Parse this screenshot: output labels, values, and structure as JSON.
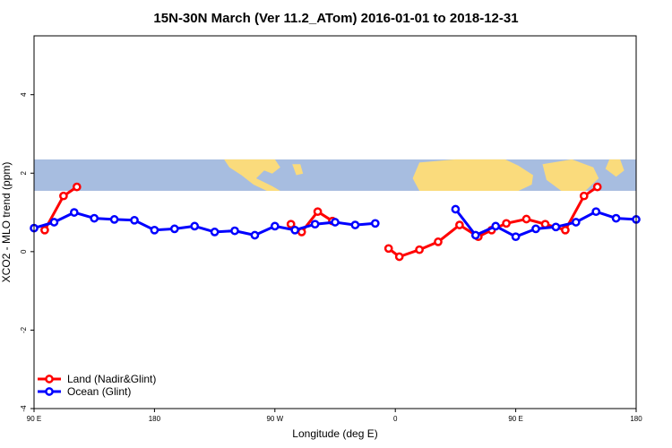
{
  "chart_data": {
    "type": "line",
    "title": "15N-30N March (Ver 11.2_ATom)   2016-01-01 to 2018-12-31",
    "xlabel": "Longitude (deg E)",
    "ylabel": "XCO2 - MLO trend (ppm)",
    "x_range_deg": [
      90,
      540
    ],
    "y_range": [
      -4,
      5.5
    ],
    "x_ticks": [
      {
        "value": 90,
        "label": "90 E"
      },
      {
        "value": 180,
        "label": "180"
      },
      {
        "value": 270,
        "label": "90 W"
      },
      {
        "value": 360,
        "label": "0"
      },
      {
        "value": 450,
        "label": "90 E"
      },
      {
        "value": 540,
        "label": "180"
      }
    ],
    "y_ticks": [
      {
        "value": -4,
        "label": "-4"
      },
      {
        "value": -2,
        "label": "-2"
      },
      {
        "value": 0,
        "label": "0"
      },
      {
        "value": 2,
        "label": "2"
      },
      {
        "value": 4,
        "label": "4"
      }
    ],
    "map_band": {
      "y_min": 1.55,
      "y_max": 2.35,
      "ocean_color": "#a7bde0",
      "land_color": "#fadb7c"
    },
    "legend_position": "bottom-left",
    "series": [
      {
        "name": "Land (Nadir&Glint)",
        "color": "#ff0000",
        "segments": [
          [
            [
              98,
              0.55
            ],
            [
              112,
              1.42
            ],
            [
              122,
              1.65
            ]
          ],
          [
            [
              282,
              0.7
            ],
            [
              290,
              0.5
            ],
            [
              302,
              1.02
            ],
            [
              313,
              0.78
            ]
          ],
          [
            [
              355,
              0.08
            ],
            [
              363,
              -0.13
            ],
            [
              378,
              0.05
            ],
            [
              392,
              0.25
            ],
            [
              408,
              0.68
            ],
            [
              422,
              0.38
            ],
            [
              432,
              0.55
            ],
            [
              443,
              0.72
            ],
            [
              458,
              0.83
            ],
            [
              472,
              0.7
            ],
            [
              487,
              0.55
            ],
            [
              501,
              1.42
            ],
            [
              511,
              1.65
            ]
          ]
        ]
      },
      {
        "name": "Ocean (Glint)",
        "color": "#0000ff",
        "segments": [
          [
            [
              90,
              0.6
            ],
            [
              105,
              0.75
            ],
            [
              120,
              1.0
            ],
            [
              135,
              0.85
            ],
            [
              150,
              0.82
            ],
            [
              165,
              0.8
            ],
            [
              180,
              0.55
            ],
            [
              195,
              0.58
            ],
            [
              210,
              0.65
            ],
            [
              225,
              0.5
            ],
            [
              240,
              0.53
            ],
            [
              255,
              0.42
            ],
            [
              270,
              0.65
            ],
            [
              285,
              0.55
            ],
            [
              300,
              0.7
            ],
            [
              315,
              0.75
            ],
            [
              330,
              0.68
            ],
            [
              345,
              0.72
            ]
          ],
          [
            [
              405,
              1.08
            ],
            [
              420,
              0.42
            ],
            [
              435,
              0.65
            ],
            [
              450,
              0.38
            ],
            [
              465,
              0.58
            ],
            [
              480,
              0.63
            ],
            [
              495,
              0.75
            ],
            [
              510,
              1.02
            ],
            [
              525,
              0.85
            ],
            [
              540,
              0.82
            ]
          ]
        ]
      }
    ]
  }
}
